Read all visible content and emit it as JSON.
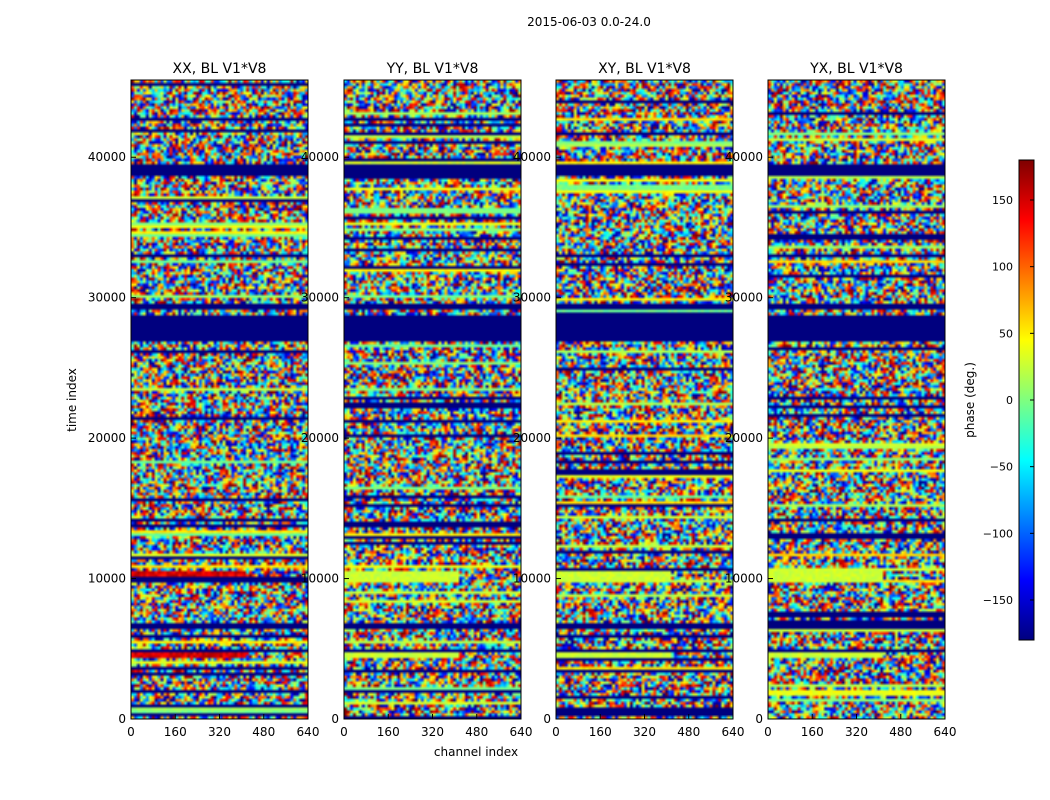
{
  "chart_data": {
    "type": "heatmap",
    "suptitle": "2015-06-03 0.0-24.0",
    "xlabel": "channel index",
    "ylabel": "time index",
    "xlim": [
      0,
      640
    ],
    "ylim": [
      0,
      45500
    ],
    "xticks": [
      0,
      160,
      320,
      480,
      640
    ],
    "yticks": [
      0,
      10000,
      20000,
      30000,
      40000
    ],
    "panels": [
      {
        "title": "XX, BL V1*V8"
      },
      {
        "title": "YY, BL V1*V8"
      },
      {
        "title": "XY, BL V1*V8"
      },
      {
        "title": "YX, BL V1*V8"
      }
    ],
    "colorbar": {
      "label": "phase (deg.)",
      "range": [
        -180,
        180
      ],
      "ticks": [
        150,
        100,
        50,
        0,
        -50,
        -100,
        -150
      ],
      "tick_labels": [
        "150",
        "100",
        "50",
        "0",
        "−50",
        "−100",
        "−150"
      ],
      "colormap": "jet",
      "colormap_stops": [
        "#00007f",
        "#0000ff",
        "#007fff",
        "#00ffff",
        "#7fff7f",
        "#ffff00",
        "#ff7f00",
        "#ff0000",
        "#7f0000"
      ]
    },
    "flagged_time_ranges": [
      [
        38700,
        39600
      ],
      [
        26800,
        28700
      ],
      [
        29200,
        29600
      ],
      [
        6500,
        6800
      ],
      [
        4800,
        5000
      ]
    ],
    "stripe_time_ranges": [
      [
        9800,
        10600
      ],
      [
        4400,
        4700
      ]
    ]
  }
}
